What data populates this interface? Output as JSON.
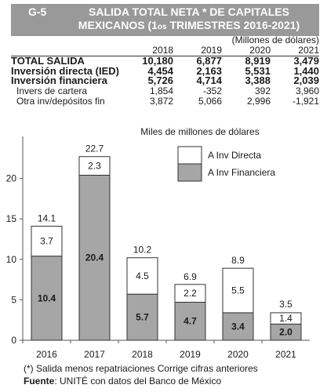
{
  "header": {
    "code": "G-5",
    "title_line1": "SALIDA TOTAL NETA * DE CAPITALES",
    "title_line2_a": "MEXICANOS (1",
    "title_line2_sup": "os",
    "title_line2_b": " TRIMESTRES 2016-2021)"
  },
  "table": {
    "units": "(Millones de dólares)",
    "years": [
      "2018",
      "2019",
      "2020",
      "2021"
    ],
    "rows": [
      {
        "label": "TOTAL SALIDA",
        "values": [
          "10,180",
          "6,877",
          "8,919",
          "3,479"
        ]
      },
      {
        "label": "Inversión directa (IED)",
        "values": [
          "4,454",
          "2,163",
          "5,531",
          "1,440"
        ]
      },
      {
        "label": "Inversión financiera",
        "values": [
          "5,726",
          "4,714",
          "3,388",
          "2,039"
        ]
      },
      {
        "label": "Invers de cartera",
        "values": [
          "1,854",
          "-352",
          "392",
          "3,960"
        ]
      },
      {
        "label": "Otra inv/depósitos fin",
        "values": [
          "3,872",
          "5,066",
          "2,996",
          "-1,921"
        ]
      }
    ]
  },
  "chart_data": {
    "type": "bar",
    "stacked": true,
    "title": "Miles de millones de dólares",
    "categories": [
      "2016",
      "2017",
      "2018",
      "2019",
      "2020",
      "2021"
    ],
    "series": [
      {
        "name": "A Inv Financiera",
        "color": "#a6a6a6",
        "values": [
          10.4,
          20.4,
          5.7,
          4.7,
          3.4,
          2.0
        ],
        "labels": [
          "10.4",
          "20.4",
          "5.7",
          "4.7",
          "3.4",
          "2.0"
        ]
      },
      {
        "name": "A Inv Directa",
        "color": "#ffffff",
        "values": [
          3.7,
          2.3,
          4.5,
          2.2,
          5.5,
          1.4
        ],
        "labels": [
          "3.7",
          "2.3",
          "4.5",
          "2.2",
          "5.5",
          "1.4"
        ]
      }
    ],
    "totals": [
      14.1,
      22.7,
      10.2,
      6.9,
      8.9,
      3.5
    ],
    "total_labels": [
      "14.1",
      "22.7",
      "10.2",
      "6.9",
      "8.9",
      "3.5"
    ],
    "yticks": [
      "0",
      "5",
      "10",
      "15",
      "20"
    ],
    "ylim": [
      0,
      25
    ],
    "legend_position": "top-right",
    "grid": false
  },
  "notes": {
    "footnote": "(*) Salida menos repatriaciones Corrige cifras anteriores",
    "source_label": "Fuente",
    "source_text": ": UNITÉ con datos del Banco de México"
  }
}
